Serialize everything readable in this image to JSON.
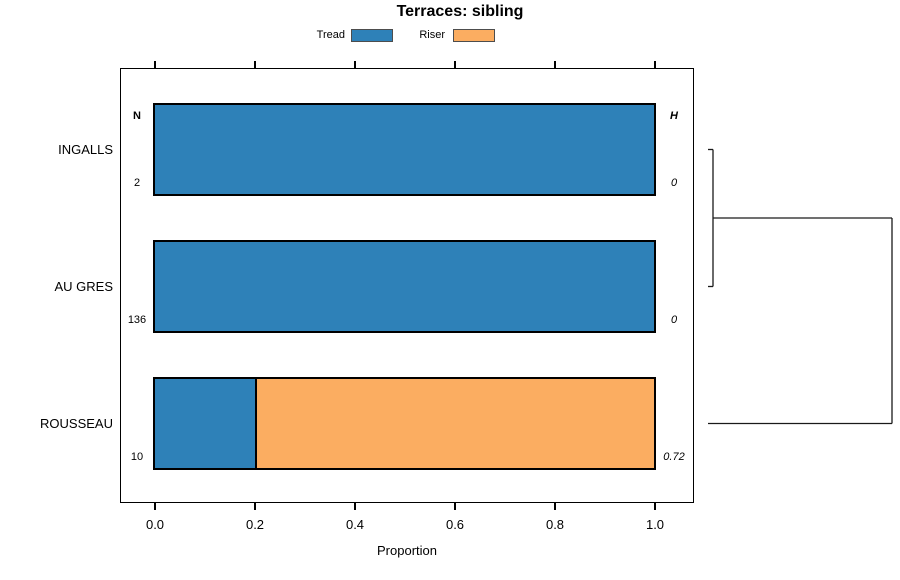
{
  "title": "Terraces: sibling",
  "legend": [
    {
      "label": "Tread",
      "color": "#2E81B8"
    },
    {
      "label": "Riser",
      "color": "#FBAD61"
    }
  ],
  "chart_data": {
    "type": "bar",
    "orientation": "horizontal",
    "stacked": true,
    "title": "Terraces: sibling",
    "xlabel": "Proportion",
    "xlim": [
      0,
      1
    ],
    "xticks": [
      {
        "value": 0.0,
        "label": "0.0"
      },
      {
        "value": 0.2,
        "label": "0.2"
      },
      {
        "value": 0.4,
        "label": "0.4"
      },
      {
        "value": 0.6,
        "label": "0.6"
      },
      {
        "value": 0.8,
        "label": "0.8"
      },
      {
        "value": 1.0,
        "label": "1.0"
      }
    ],
    "categories": [
      "INGALLS",
      "AU GRES",
      "ROUSSEAU"
    ],
    "series": [
      {
        "name": "Tread",
        "color": "#2E81B8",
        "values": [
          1.0,
          1.0,
          0.2
        ]
      },
      {
        "name": "Riser",
        "color": "#FBAD61",
        "values": [
          0.0,
          0.0,
          0.8
        ]
      }
    ],
    "n_column": {
      "header": "N",
      "values": [
        "2",
        "136",
        "10"
      ]
    },
    "h_column": {
      "header": "H",
      "values": [
        "0",
        "0",
        "0.72"
      ]
    },
    "dendrogram": {
      "max_height": 0.72,
      "merges": [
        {
          "between": [
            "INGALLS",
            "AU GRES"
          ],
          "height": 0
        },
        {
          "between": [
            "INGALLS+AU GRES",
            "ROUSSEAU"
          ],
          "height": 0.72
        }
      ]
    },
    "grid": false,
    "legend_position": "top"
  }
}
